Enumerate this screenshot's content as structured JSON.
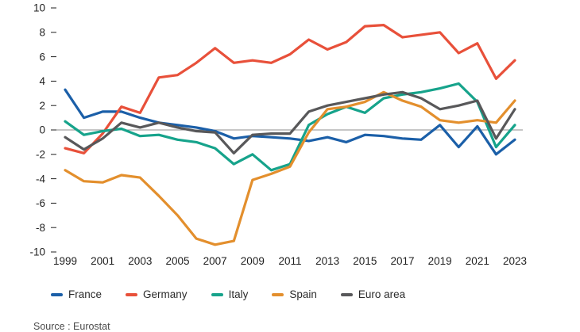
{
  "chart_data": {
    "type": "line",
    "x": [
      1999,
      2000,
      2001,
      2002,
      2003,
      2004,
      2005,
      2006,
      2007,
      2008,
      2009,
      2010,
      2011,
      2012,
      2013,
      2014,
      2015,
      2016,
      2017,
      2018,
      2019,
      2020,
      2021,
      2022,
      2023
    ],
    "x_tick_labels": [
      "1999",
      "2001",
      "2003",
      "2005",
      "2007",
      "2009",
      "2011",
      "2013",
      "2015",
      "2017",
      "2019",
      "2021",
      "2023"
    ],
    "ylim": [
      -10,
      10
    ],
    "y_ticks": [
      10,
      8,
      6,
      4,
      2,
      0,
      -2,
      -4,
      -6,
      -8,
      -10
    ],
    "zero_line": true,
    "grid": false,
    "legend_position": "bottom",
    "series": [
      {
        "name": "France",
        "color": "#1b5fa8",
        "values": [
          3.3,
          1.0,
          1.5,
          1.5,
          1.0,
          0.6,
          0.4,
          0.2,
          -0.1,
          -0.7,
          -0.5,
          -0.6,
          -0.7,
          -0.9,
          -0.6,
          -1.0,
          -0.4,
          -0.5,
          -0.7,
          -0.8,
          0.4,
          -1.4,
          0.3,
          -2.0,
          -0.8
        ]
      },
      {
        "name": "Germany",
        "color": "#e8503a",
        "values": [
          -1.5,
          -1.9,
          -0.3,
          1.9,
          1.4,
          4.3,
          4.5,
          5.5,
          6.7,
          5.5,
          5.7,
          5.5,
          6.2,
          7.4,
          6.6,
          7.2,
          8.5,
          8.6,
          7.6,
          7.8,
          8.0,
          6.3,
          7.1,
          4.2,
          5.7
        ]
      },
      {
        "name": "Italy",
        "color": "#16a38b",
        "values": [
          0.7,
          -0.4,
          -0.1,
          0.1,
          -0.5,
          -0.4,
          -0.8,
          -1.0,
          -1.5,
          -2.8,
          -2.0,
          -3.3,
          -2.8,
          0.4,
          1.3,
          1.9,
          1.4,
          2.6,
          2.9,
          3.1,
          3.4,
          3.8,
          2.3,
          -1.4,
          0.4
        ]
      },
      {
        "name": "Spain",
        "color": "#e38f2d",
        "values": [
          -3.3,
          -4.2,
          -4.3,
          -3.7,
          -3.9,
          -5.4,
          -7.0,
          -8.9,
          -9.4,
          -9.1,
          -4.1,
          -3.6,
          -3.0,
          -0.2,
          1.7,
          1.9,
          2.3,
          3.1,
          2.4,
          1.9,
          0.8,
          0.6,
          0.8,
          0.6,
          2.4
        ]
      },
      {
        "name": "Euro area",
        "color": "#58585a",
        "values": [
          -0.6,
          -1.6,
          -0.7,
          0.6,
          0.2,
          0.6,
          0.2,
          -0.1,
          -0.2,
          -1.9,
          -0.4,
          -0.3,
          -0.3,
          1.5,
          2.0,
          2.3,
          2.6,
          2.9,
          3.1,
          2.6,
          1.7,
          2.0,
          2.4,
          -0.7,
          1.7
        ]
      }
    ],
    "axis_color": "#1f1f1f",
    "zero_line_color": "#8c8c8c"
  },
  "footer": {
    "source": "Source : Eurostat"
  }
}
